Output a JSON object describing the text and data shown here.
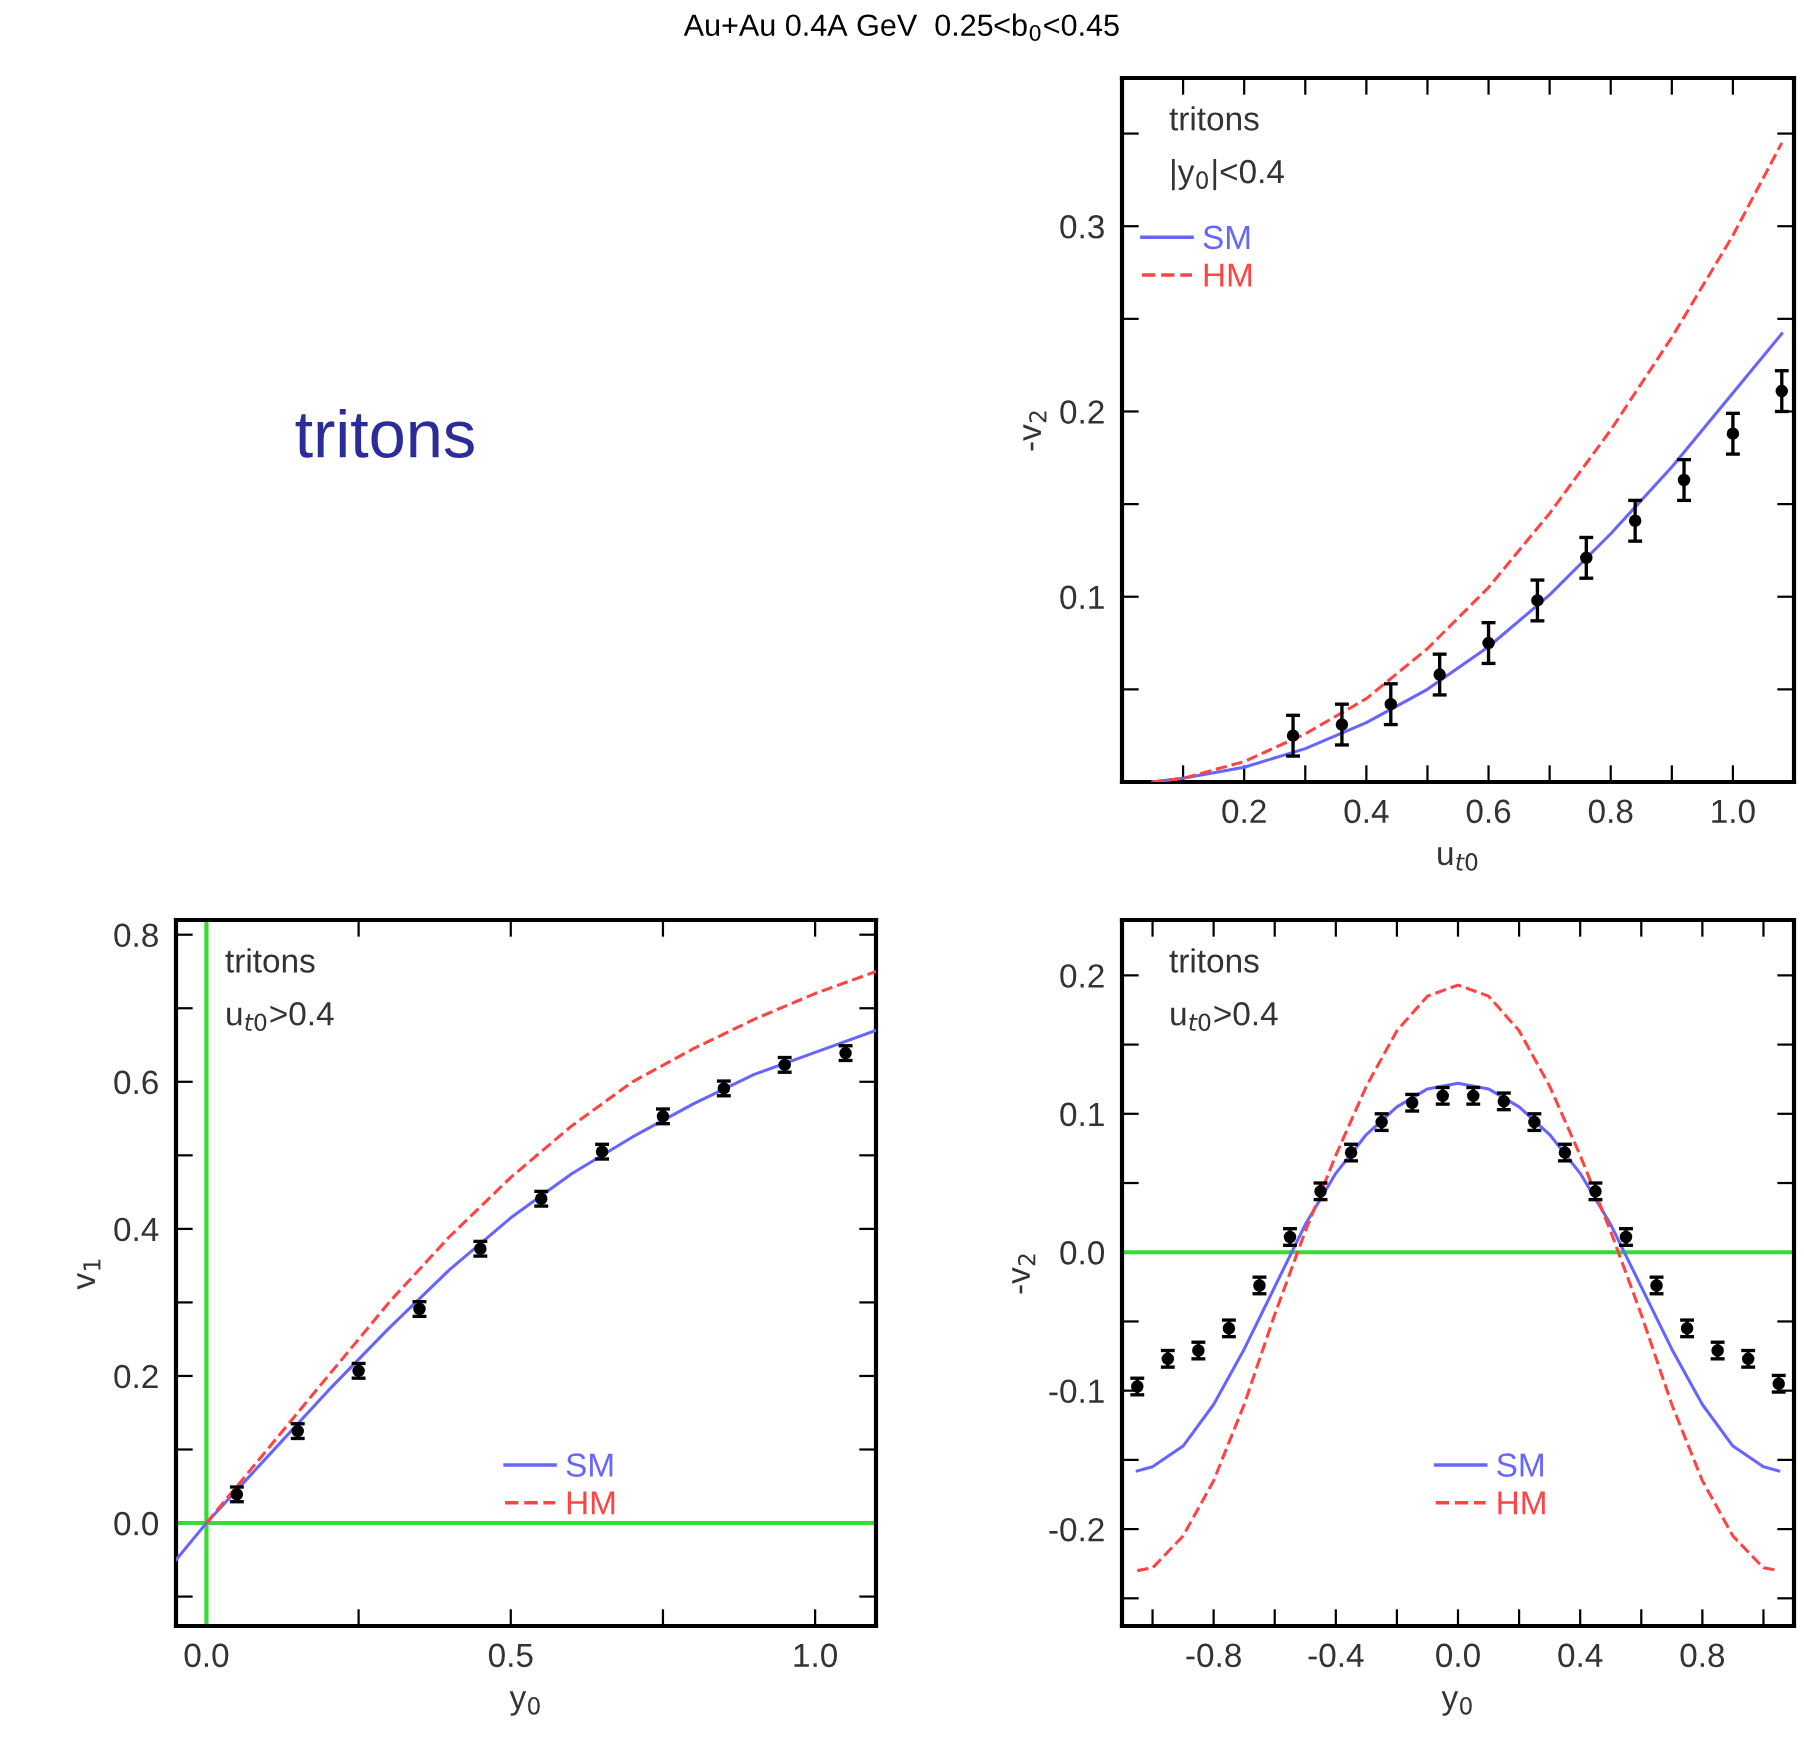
{
  "chart_data": [
    {
      "type": "other",
      "title": "Au+Au 0.4A GeV  0.25<b$_{0}$<0.45",
      "annotations": [
        "tritons"
      ]
    },
    {
      "type": "line",
      "xlabel": "u$_{t0}$",
      "ylabel": "-v$_{2}$",
      "annotations": [
        "tritons",
        "|y$_{0}$|<0.4"
      ],
      "legend": "top left",
      "xlim": [
        0,
        1.1
      ],
      "ylim": [
        0,
        0.38
      ],
      "xticks": [
        {
          "value": 0.1,
          "label": null
        },
        0.2,
        {
          "value": 0.3,
          "label": null
        },
        0.4,
        {
          "value": 0.5,
          "label": null
        },
        0.6,
        {
          "value": 0.7,
          "label": null
        },
        0.8,
        {
          "value": 0.9,
          "label": null
        },
        {
          "value": 1,
          "label": "1.0"
        }
      ],
      "yticks": [
        {
          "value": 0.05,
          "label": null
        },
        0.1,
        {
          "value": 0.15,
          "label": null
        },
        0.2,
        {
          "value": 0.25,
          "label": null
        },
        0.3,
        {
          "value": 0.35,
          "label": null
        }
      ],
      "series": [
        {
          "type": "scatter",
          "color": "#000000",
          "marker": "circle",
          "x": [
            0.28,
            0.36,
            0.44,
            0.52,
            0.6,
            0.68,
            0.76,
            0.84,
            0.92,
            1.0,
            1.08
          ],
          "values": [
            0.025,
            0.031,
            0.042,
            0.058,
            0.075,
            0.098,
            0.121,
            0.141,
            0.163,
            0.188,
            0.211
          ],
          "errors": [
            0.011,
            0.011,
            0.011,
            0.011,
            0.011,
            0.011,
            0.011,
            0.011,
            0.011,
            0.011,
            0.011
          ]
        },
        {
          "name": "SM",
          "color": "#6666ff",
          "line_style": "solid",
          "x": [
            0.05,
            0.1,
            0.2,
            0.3,
            0.4,
            0.5,
            0.6,
            0.7,
            0.8,
            0.9,
            1.0,
            1.08
          ],
          "values": [
            0.0,
            0.002,
            0.008,
            0.018,
            0.032,
            0.05,
            0.073,
            0.101,
            0.134,
            0.17,
            0.21,
            0.242
          ]
        },
        {
          "name": "HM",
          "color": "#ff4444",
          "line_style": "dashed",
          "x": [
            0.05,
            0.1,
            0.2,
            0.3,
            0.4,
            0.5,
            0.6,
            0.7,
            0.8,
            0.9,
            1.0,
            1.08
          ],
          "values": [
            0.0,
            0.002,
            0.011,
            0.026,
            0.045,
            0.072,
            0.105,
            0.145,
            0.19,
            0.24,
            0.295,
            0.345
          ]
        }
      ]
    },
    {
      "type": "line",
      "xlabel": "y$_{0}$",
      "ylabel": "v$_{1}$",
      "annotations": [
        "tritons",
        "u$_{t0}$>0.4"
      ],
      "legend": "bottom",
      "xlim": [
        -0.05,
        1.1
      ],
      "ylim": [
        -0.14,
        0.82
      ],
      "xticks": [
        {
          "value": 0,
          "label": "0.0"
        },
        {
          "value": 0.25,
          "label": null
        },
        0.5,
        {
          "value": 0.75,
          "label": null
        },
        {
          "value": 1,
          "label": "1.0"
        }
      ],
      "yticks": [
        {
          "value": -0.1,
          "label": null
        },
        {
          "value": 0,
          "label": "0.0"
        },
        {
          "value": 0.1,
          "label": null
        },
        0.2,
        {
          "value": 0.3,
          "label": null
        },
        0.4,
        {
          "value": 0.5,
          "label": null
        },
        0.6,
        {
          "value": 0.7,
          "label": null
        },
        0.8
      ],
      "ref_lines": [
        {
          "axis": "x",
          "value": 0,
          "color": "#33dd33"
        },
        {
          "axis": "y",
          "value": 0,
          "color": "#33dd33"
        }
      ],
      "series": [
        {
          "type": "scatter",
          "color": "#000000",
          "marker": "circle",
          "x": [
            0.05,
            0.15,
            0.25,
            0.35,
            0.45,
            0.55,
            0.65,
            0.75,
            0.85,
            0.95,
            1.05
          ],
          "values": [
            0.039,
            0.125,
            0.207,
            0.291,
            0.373,
            0.441,
            0.505,
            0.553,
            0.591,
            0.623,
            0.639
          ],
          "errors": [
            0.01,
            0.01,
            0.01,
            0.01,
            0.01,
            0.01,
            0.01,
            0.01,
            0.01,
            0.01,
            0.01
          ]
        },
        {
          "name": "SM",
          "color": "#6666ff",
          "line_style": "solid",
          "x": [
            -0.05,
            0.0,
            0.1,
            0.2,
            0.3,
            0.4,
            0.5,
            0.6,
            0.7,
            0.8,
            0.9,
            1.0,
            1.1
          ],
          "values": [
            -0.05,
            0.0,
            0.09,
            0.18,
            0.265,
            0.345,
            0.415,
            0.475,
            0.525,
            0.57,
            0.61,
            0.64,
            0.67
          ]
        },
        {
          "name": "HM",
          "color": "#ff4444",
          "line_style": "dashed",
          "x": [
            0.0,
            0.1,
            0.2,
            0.3,
            0.4,
            0.5,
            0.6,
            0.7,
            0.8,
            0.9,
            1.0,
            1.1
          ],
          "values": [
            0.0,
            0.1,
            0.2,
            0.3,
            0.39,
            0.47,
            0.54,
            0.6,
            0.645,
            0.685,
            0.72,
            0.75
          ]
        }
      ]
    },
    {
      "type": "line",
      "xlabel": "y$_{0}$",
      "ylabel": "-v$_{2}$",
      "annotations": [
        "tritons",
        "u$_{t0}$>0.4"
      ],
      "legend": "bottom",
      "xlim": [
        -1.1,
        1.1
      ],
      "ylim": [
        -0.27,
        0.24
      ],
      "xticks": [
        {
          "value": -1.0,
          "label": null
        },
        -0.8,
        {
          "value": -0.6,
          "label": null
        },
        -0.4,
        {
          "value": -0.2,
          "label": null
        },
        {
          "value": 0,
          "label": "0.0"
        },
        {
          "value": 0.2,
          "label": null
        },
        0.4,
        {
          "value": 0.6,
          "label": null
        },
        0.8,
        {
          "value": 1.0,
          "label": null
        }
      ],
      "yticks": [
        {
          "value": -0.25,
          "label": null
        },
        -0.2,
        {
          "value": -0.15,
          "label": null
        },
        -0.1,
        {
          "value": -0.05,
          "label": null
        },
        {
          "value": 0,
          "label": "0.0"
        },
        {
          "value": 0.05,
          "label": null
        },
        0.1,
        {
          "value": 0.15,
          "label": null
        },
        0.2
      ],
      "ref_lines": [
        {
          "axis": "y",
          "value": 0,
          "color": "#33dd33"
        }
      ],
      "series": [
        {
          "type": "scatter",
          "color": "#000000",
          "marker": "circle",
          "x": [
            -1.05,
            -0.95,
            -0.85,
            -0.75,
            -0.65,
            -0.55,
            -0.45,
            -0.35,
            -0.25,
            -0.15,
            -0.05,
            0.05,
            0.15,
            0.25,
            0.35,
            0.45,
            0.55,
            0.65,
            0.75,
            0.85,
            0.95,
            1.05
          ],
          "values": [
            -0.097,
            -0.077,
            -0.071,
            -0.055,
            -0.024,
            0.011,
            0.044,
            0.072,
            0.094,
            0.108,
            0.113,
            0.113,
            0.109,
            0.094,
            0.072,
            0.044,
            0.011,
            -0.024,
            -0.055,
            -0.071,
            -0.077,
            -0.095
          ],
          "errors": [
            0.006,
            0.006,
            0.006,
            0.006,
            0.006,
            0.006,
            0.006,
            0.006,
            0.006,
            0.006,
            0.006,
            0.006,
            0.006,
            0.006,
            0.006,
            0.006,
            0.006,
            0.006,
            0.006,
            0.006,
            0.006,
            0.006
          ]
        },
        {
          "name": "SM",
          "color": "#6666ff",
          "line_style": "solid",
          "x": [
            -1.05,
            -1.0,
            -0.9,
            -0.8,
            -0.7,
            -0.6,
            -0.5,
            -0.4,
            -0.3,
            -0.2,
            -0.1,
            0.0,
            0.1,
            0.2,
            0.3,
            0.4,
            0.5,
            0.6,
            0.7,
            0.8,
            0.9,
            1.0,
            1.05
          ],
          "values": [
            -0.158,
            -0.155,
            -0.14,
            -0.11,
            -0.07,
            -0.025,
            0.02,
            0.057,
            0.085,
            0.105,
            0.118,
            0.122,
            0.118,
            0.105,
            0.085,
            0.057,
            0.02,
            -0.025,
            -0.07,
            -0.11,
            -0.14,
            -0.155,
            -0.158
          ]
        },
        {
          "name": "HM",
          "color": "#ff4444",
          "line_style": "dashed",
          "x": [
            -1.05,
            -1.0,
            -0.9,
            -0.8,
            -0.7,
            -0.6,
            -0.5,
            -0.4,
            -0.3,
            -0.2,
            -0.1,
            0.0,
            0.1,
            0.2,
            0.3,
            0.4,
            0.5,
            0.6,
            0.7,
            0.8,
            0.9,
            1.0,
            1.05
          ],
          "values": [
            -0.23,
            -0.228,
            -0.205,
            -0.165,
            -0.11,
            -0.045,
            0.015,
            0.07,
            0.12,
            0.16,
            0.185,
            0.193,
            0.185,
            0.16,
            0.12,
            0.07,
            0.015,
            -0.045,
            -0.11,
            -0.165,
            -0.205,
            -0.228,
            -0.23
          ]
        }
      ]
    }
  ]
}
